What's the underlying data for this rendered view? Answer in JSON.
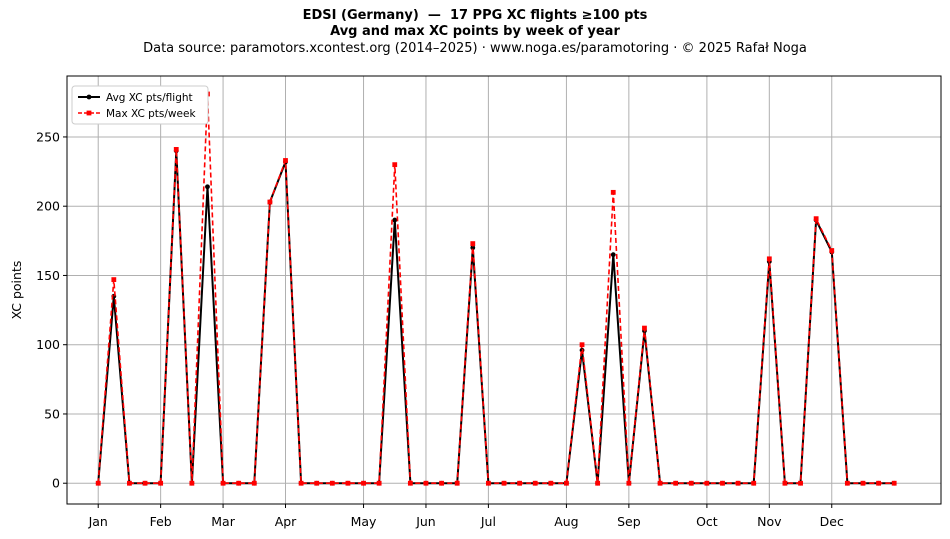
{
  "title": "EDSI (Germany)  —  17 PPG XC flights ≥100 pts",
  "subtitle": "Avg and max XC points by week of year",
  "source": "Data source: paramotors.xcontest.org (2014–2025)  ·  www.noga.es/paramotoring  ·  © 2025 Rafał Noga",
  "colors": {
    "avg": "#000000",
    "max": "#ff0000",
    "grid": "#b0b0b0"
  },
  "chart_data": {
    "type": "line",
    "ylabel": "XC points",
    "xlabel": "",
    "ylim": [
      -15,
      294
    ],
    "xlim": [
      -2,
      54
    ],
    "yticks": [
      0,
      50,
      100,
      150,
      200,
      250
    ],
    "grid": true,
    "legend_position": "top-left",
    "month_ticks": [
      {
        "label": "Jan",
        "week": 0
      },
      {
        "label": "Feb",
        "week": 4
      },
      {
        "label": "Mar",
        "week": 8
      },
      {
        "label": "Apr",
        "week": 12
      },
      {
        "label": "May",
        "week": 17
      },
      {
        "label": "Jun",
        "week": 21
      },
      {
        "label": "Jul",
        "week": 25
      },
      {
        "label": "Aug",
        "week": 30
      },
      {
        "label": "Sep",
        "week": 34
      },
      {
        "label": "Oct",
        "week": 39
      },
      {
        "label": "Nov",
        "week": 43
      },
      {
        "label": "Dec",
        "week": 47
      }
    ],
    "x": [
      0,
      1,
      2,
      3,
      4,
      5,
      6,
      7,
      8,
      9,
      10,
      11,
      12,
      13,
      14,
      15,
      16,
      17,
      18,
      19,
      20,
      21,
      22,
      23,
      24,
      25,
      26,
      27,
      28,
      29,
      30,
      31,
      32,
      33,
      34,
      35,
      36,
      37,
      38,
      39,
      40,
      41,
      42,
      43,
      44,
      45,
      46,
      47,
      48,
      49,
      50,
      51
    ],
    "series": [
      {
        "name": "Avg XC pts/flight",
        "key": "avg",
        "style": "solid",
        "values": [
          0,
          135,
          0,
          0,
          0,
          240,
          0,
          214,
          0,
          0,
          0,
          203,
          232,
          0,
          0,
          0,
          0,
          0,
          0,
          190,
          0,
          0,
          0,
          0,
          170,
          0,
          0,
          0,
          0,
          0,
          0,
          96,
          0,
          165,
          0,
          110,
          0,
          0,
          0,
          0,
          0,
          0,
          0,
          160,
          0,
          0,
          190,
          167,
          0,
          0,
          0,
          0
        ]
      },
      {
        "name": "Max XC pts/week",
        "key": "max",
        "style": "dashed",
        "values": [
          0,
          147,
          0,
          0,
          0,
          241,
          0,
          281,
          0,
          0,
          0,
          203,
          233,
          0,
          0,
          0,
          0,
          0,
          0,
          230,
          0,
          0,
          0,
          0,
          173,
          0,
          0,
          0,
          0,
          0,
          0,
          100,
          0,
          210,
          0,
          112,
          0,
          0,
          0,
          0,
          0,
          0,
          0,
          162,
          0,
          0,
          191,
          168,
          0,
          0,
          0,
          0
        ]
      }
    ]
  }
}
